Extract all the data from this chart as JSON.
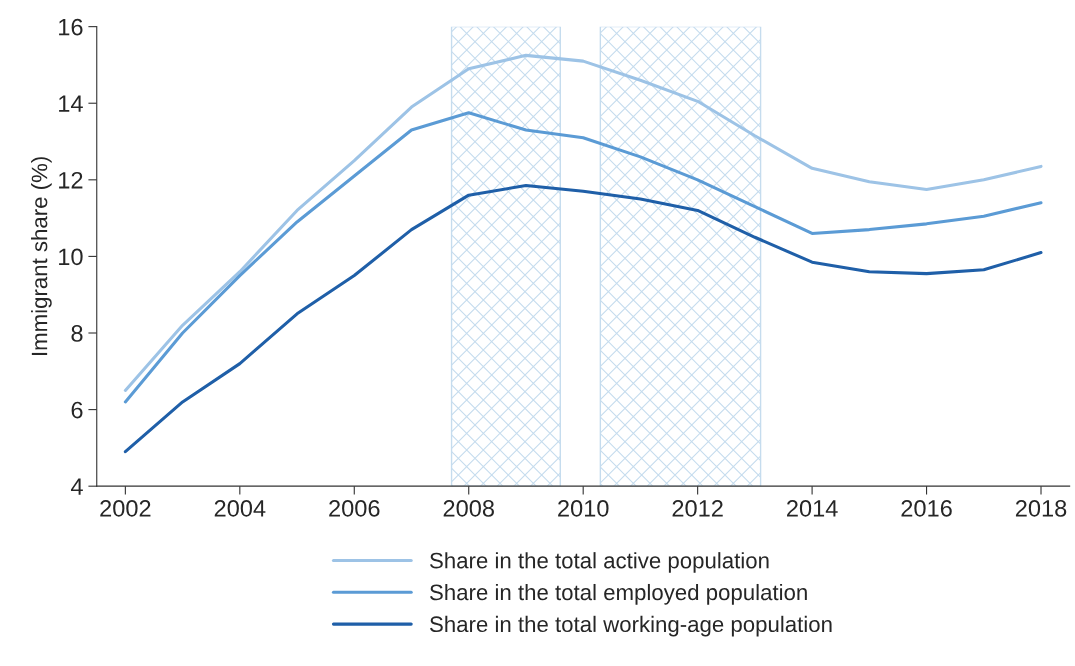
{
  "chart_data": {
    "type": "line",
    "ylabel": "Immigrant share (%)",
    "x": [
      2002,
      2003,
      2004,
      2005,
      2006,
      2007,
      2008,
      2009,
      2010,
      2011,
      2012,
      2013,
      2014,
      2015,
      2016,
      2017,
      2018
    ],
    "series": [
      {
        "name": "Share in the total active population",
        "color": "#9dc3e6",
        "values": [
          6.5,
          8.2,
          9.6,
          11.2,
          12.5,
          13.9,
          14.9,
          15.25,
          15.1,
          14.6,
          14.05,
          13.15,
          12.3,
          11.95,
          11.75,
          12.0,
          12.35
        ]
      },
      {
        "name": "Share in the total employed population",
        "color": "#5b9bd5",
        "values": [
          6.2,
          8.0,
          9.5,
          10.9,
          12.1,
          13.3,
          13.75,
          13.3,
          13.1,
          12.6,
          12.0,
          11.3,
          10.6,
          10.7,
          10.85,
          11.05,
          11.4
        ]
      },
      {
        "name": "Share in the total working-age population",
        "color": "#1f5fa8",
        "values": [
          4.9,
          6.2,
          7.2,
          8.5,
          9.5,
          10.7,
          11.6,
          11.85,
          11.7,
          11.5,
          11.2,
          10.5,
          9.85,
          9.6,
          9.55,
          9.65,
          10.1
        ]
      }
    ],
    "bands": [
      {
        "axis": "x",
        "from": 2007.7,
        "to": 2009.6,
        "color": "#c5dcee"
      },
      {
        "axis": "x",
        "from": 2010.3,
        "to": 2013.1,
        "color": "#c5dcee"
      }
    ],
    "xlim": [
      2001.5,
      2018.5
    ],
    "xticks": [
      2002,
      2004,
      2006,
      2008,
      2010,
      2012,
      2014,
      2016,
      2018
    ],
    "ylim": [
      4,
      16
    ],
    "yticks": [
      4,
      6,
      8,
      10,
      12,
      14,
      16
    ],
    "grid": false,
    "legend": "bottom",
    "marker": "none",
    "line_style": "solid"
  }
}
